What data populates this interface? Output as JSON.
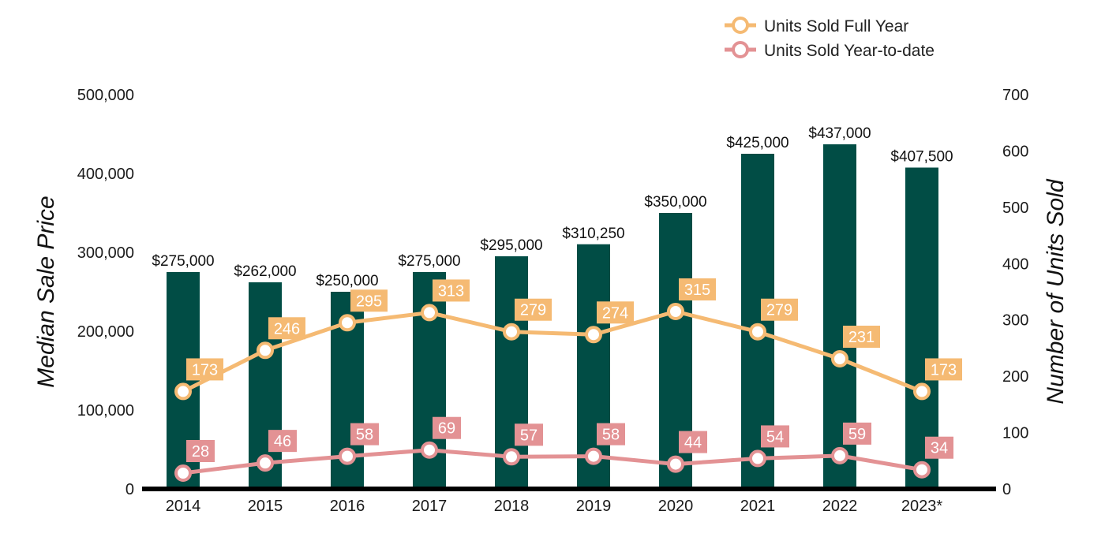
{
  "chart_data": {
    "type": "bar",
    "categories": [
      "2014",
      "2015",
      "2016",
      "2017",
      "2018",
      "2019",
      "2020",
      "2021",
      "2022",
      "2023*"
    ],
    "bar_series": {
      "name": "",
      "values": [
        275000,
        262000,
        250000,
        275000,
        295000,
        310250,
        350000,
        425000,
        437000,
        407500
      ],
      "labels": [
        "$275,000",
        "$262,000",
        "$250,000",
        "$275,000",
        "$295,000",
        "$310,250",
        "$350,000",
        "$425,000",
        "$437,000",
        "$407,500"
      ],
      "color": "#014D45"
    },
    "line_series": [
      {
        "name": "Units Sold Full Year",
        "values": [
          173,
          246,
          295,
          313,
          279,
          274,
          315,
          279,
          231,
          173
        ],
        "labels": [
          "173",
          "246",
          "295",
          "313",
          "279",
          "274",
          "315",
          "279",
          "231",
          "173"
        ],
        "color": "#F5BA73"
      },
      {
        "name": "Units Sold Year-to-date",
        "values": [
          28,
          46,
          58,
          69,
          57,
          58,
          44,
          54,
          59,
          34
        ],
        "labels": [
          "28",
          "46",
          "58",
          "69",
          "57",
          "58",
          "44",
          "54",
          "59",
          "34"
        ],
        "color": "#E39294"
      }
    ],
    "ylabel": "Median Sale Price",
    "y2label": "Number of Units Sold",
    "ylim": [
      0,
      500000
    ],
    "y2lim": [
      0,
      700
    ],
    "yticks": [
      "0",
      "100,000",
      "200,000",
      "300,000",
      "400,000",
      "500,000"
    ],
    "yticks_values": [
      0,
      100000,
      200000,
      300000,
      400000,
      500000
    ],
    "y2ticks": [
      "0",
      "100",
      "200",
      "300",
      "400",
      "500",
      "600",
      "700"
    ],
    "y2ticks_values": [
      0,
      100,
      200,
      300,
      400,
      500,
      600,
      700
    ],
    "grid": false,
    "legend_position": "top-right",
    "axis_color": "#000000"
  }
}
